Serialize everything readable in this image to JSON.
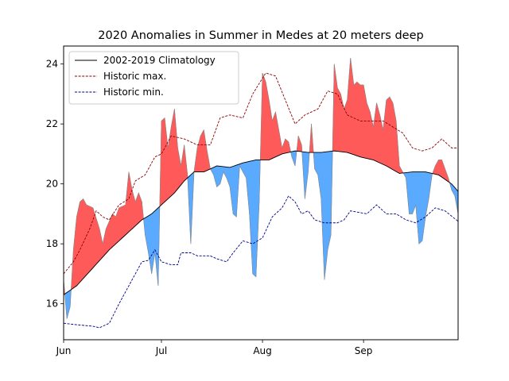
{
  "chart_data": {
    "type": "area",
    "title": "2020 Anomalies in Summer in Medes at 20 meters deep",
    "xlabel": "",
    "ylabel": "",
    "xlim": [
      "2020-06-01",
      "2020-09-30"
    ],
    "ylim": [
      14.8,
      24.6
    ],
    "x_ticks": [
      {
        "date": "2020-06-01",
        "label": "Jun"
      },
      {
        "date": "2020-07-01",
        "label": "Jul"
      },
      {
        "date": "2020-08-01",
        "label": "Aug"
      },
      {
        "date": "2020-09-01",
        "label": "Sep"
      }
    ],
    "y_ticks": [
      16,
      18,
      20,
      22,
      24
    ],
    "grid": false,
    "legend_position": "top-left",
    "colors": {
      "climatology": "#000000",
      "historic_min": "#00008b",
      "historic_max": "#8b0000",
      "warm_fill": "#ff5a5a",
      "cold_fill": "#5aaaff"
    },
    "series": [
      {
        "name": "2002-2019 Climatology",
        "style": "solid",
        "points": [
          [
            "2020-06-01",
            16.3
          ],
          [
            "2020-06-05",
            16.6
          ],
          [
            "2020-06-10",
            17.2
          ],
          [
            "2020-06-15",
            17.8
          ],
          [
            "2020-06-20",
            18.3
          ],
          [
            "2020-06-25",
            18.8
          ],
          [
            "2020-06-28",
            19.0
          ],
          [
            "2020-07-01",
            19.3
          ],
          [
            "2020-07-05",
            19.7
          ],
          [
            "2020-07-08",
            20.1
          ],
          [
            "2020-07-11",
            20.4
          ],
          [
            "2020-07-14",
            20.4
          ],
          [
            "2020-07-18",
            20.6
          ],
          [
            "2020-07-22",
            20.55
          ],
          [
            "2020-07-26",
            20.7
          ],
          [
            "2020-07-30",
            20.8
          ],
          [
            "2020-08-03",
            20.8
          ],
          [
            "2020-08-07",
            21.0
          ],
          [
            "2020-08-11",
            21.1
          ],
          [
            "2020-08-15",
            21.05
          ],
          [
            "2020-08-19",
            21.05
          ],
          [
            "2020-08-23",
            21.1
          ],
          [
            "2020-08-27",
            21.05
          ],
          [
            "2020-08-31",
            20.9
          ],
          [
            "2020-09-04",
            20.8
          ],
          [
            "2020-09-08",
            20.6
          ],
          [
            "2020-09-12",
            20.35
          ],
          [
            "2020-09-16",
            20.4
          ],
          [
            "2020-09-20",
            20.4
          ],
          [
            "2020-09-24",
            20.3
          ],
          [
            "2020-09-28",
            20.0
          ],
          [
            "2020-09-30",
            19.75
          ]
        ]
      },
      {
        "name": "Historic min.",
        "style": "dashed",
        "points": [
          [
            "2020-06-01",
            15.35
          ],
          [
            "2020-06-05",
            15.3
          ],
          [
            "2020-06-10",
            15.25
          ],
          [
            "2020-06-12",
            15.2
          ],
          [
            "2020-06-15",
            15.35
          ],
          [
            "2020-06-18",
            16.0
          ],
          [
            "2020-06-22",
            16.8
          ],
          [
            "2020-06-25",
            17.4
          ],
          [
            "2020-06-27",
            17.45
          ],
          [
            "2020-06-29",
            17.8
          ],
          [
            "2020-07-01",
            17.4
          ],
          [
            "2020-07-04",
            17.3
          ],
          [
            "2020-07-06",
            17.3
          ],
          [
            "2020-07-07",
            17.7
          ],
          [
            "2020-07-10",
            17.7
          ],
          [
            "2020-07-12",
            17.6
          ],
          [
            "2020-07-16",
            17.6
          ],
          [
            "2020-07-18",
            17.5
          ],
          [
            "2020-07-21",
            17.4
          ],
          [
            "2020-07-23",
            17.7
          ],
          [
            "2020-07-26",
            18.1
          ],
          [
            "2020-07-29",
            18.0
          ],
          [
            "2020-08-01",
            18.2
          ],
          [
            "2020-08-04",
            18.9
          ],
          [
            "2020-08-07",
            19.2
          ],
          [
            "2020-08-09",
            19.6
          ],
          [
            "2020-08-11",
            19.4
          ],
          [
            "2020-08-13",
            19.0
          ],
          [
            "2020-08-15",
            19.1
          ],
          [
            "2020-08-17",
            18.8
          ],
          [
            "2020-08-20",
            18.7
          ],
          [
            "2020-08-24",
            18.7
          ],
          [
            "2020-08-26",
            18.8
          ],
          [
            "2020-08-28",
            19.1
          ],
          [
            "2020-09-02",
            19.0
          ],
          [
            "2020-09-05",
            19.3
          ],
          [
            "2020-09-08",
            19.0
          ],
          [
            "2020-09-11",
            19.0
          ],
          [
            "2020-09-14",
            18.8
          ],
          [
            "2020-09-17",
            18.7
          ],
          [
            "2020-09-20",
            18.9
          ],
          [
            "2020-09-23",
            19.2
          ],
          [
            "2020-09-26",
            19.1
          ],
          [
            "2020-09-30",
            18.75
          ]
        ]
      },
      {
        "name": "Historic max.",
        "style": "dashed",
        "points": [
          [
            "2020-06-01",
            17.0
          ],
          [
            "2020-06-04",
            17.4
          ],
          [
            "2020-06-06",
            17.8
          ],
          [
            "2020-06-09",
            18.5
          ],
          [
            "2020-06-11",
            19.1
          ],
          [
            "2020-06-13",
            18.9
          ],
          [
            "2020-06-15",
            18.8
          ],
          [
            "2020-06-18",
            19.3
          ],
          [
            "2020-06-21",
            19.5
          ],
          [
            "2020-06-23",
            20.1
          ],
          [
            "2020-06-26",
            20.3
          ],
          [
            "2020-06-29",
            20.9
          ],
          [
            "2020-07-01",
            21.0
          ],
          [
            "2020-07-04",
            21.6
          ],
          [
            "2020-07-08",
            21.5
          ],
          [
            "2020-07-12",
            21.3
          ],
          [
            "2020-07-16",
            21.3
          ],
          [
            "2020-07-19",
            22.2
          ],
          [
            "2020-07-22",
            22.3
          ],
          [
            "2020-07-26",
            22.2
          ],
          [
            "2020-07-29",
            23.0
          ],
          [
            "2020-08-02",
            23.7
          ],
          [
            "2020-08-05",
            23.6
          ],
          [
            "2020-08-08",
            22.8
          ],
          [
            "2020-08-11",
            22.0
          ],
          [
            "2020-08-14",
            22.3
          ],
          [
            "2020-08-18",
            22.5
          ],
          [
            "2020-08-21",
            23.1
          ],
          [
            "2020-08-24",
            23.0
          ],
          [
            "2020-08-27",
            22.3
          ],
          [
            "2020-08-31",
            22.1
          ],
          [
            "2020-09-04",
            22.1
          ],
          [
            "2020-09-07",
            22.1
          ],
          [
            "2020-09-10",
            21.9
          ],
          [
            "2020-09-13",
            21.7
          ],
          [
            "2020-09-16",
            21.2
          ],
          [
            "2020-09-19",
            21.1
          ],
          [
            "2020-09-22",
            21.2
          ],
          [
            "2020-09-25",
            21.5
          ],
          [
            "2020-09-28",
            21.2
          ],
          [
            "2020-09-30",
            21.2
          ]
        ]
      },
      {
        "name": "",
        "style": "observed",
        "points": [
          [
            "2020-06-01",
            16.8
          ],
          [
            "2020-06-02",
            15.5
          ],
          [
            "2020-06-03",
            15.9
          ],
          [
            "2020-06-04",
            17.8
          ],
          [
            "2020-06-05",
            18.9
          ],
          [
            "2020-06-06",
            19.4
          ],
          [
            "2020-06-07",
            19.5
          ],
          [
            "2020-06-08",
            19.3
          ],
          [
            "2020-06-10",
            19.2
          ],
          [
            "2020-06-12",
            18.5
          ],
          [
            "2020-06-13",
            18.0
          ],
          [
            "2020-06-14",
            18.5
          ],
          [
            "2020-06-16",
            19.0
          ],
          [
            "2020-06-17",
            18.9
          ],
          [
            "2020-06-18",
            19.2
          ],
          [
            "2020-06-20",
            19.3
          ],
          [
            "2020-06-21",
            20.4
          ],
          [
            "2020-06-22",
            19.8
          ],
          [
            "2020-06-23",
            19.4
          ],
          [
            "2020-06-24",
            19.7
          ],
          [
            "2020-06-25",
            19.4
          ],
          [
            "2020-06-26",
            18.3
          ],
          [
            "2020-06-27",
            17.7
          ],
          [
            "2020-06-28",
            17.0
          ],
          [
            "2020-06-29",
            17.7
          ],
          [
            "2020-06-30",
            16.6
          ],
          [
            "2020-07-01",
            22.1
          ],
          [
            "2020-07-02",
            22.2
          ],
          [
            "2020-07-03",
            21.2
          ],
          [
            "2020-07-04",
            21.9
          ],
          [
            "2020-07-05",
            22.5
          ],
          [
            "2020-07-06",
            21.2
          ],
          [
            "2020-07-07",
            20.6
          ],
          [
            "2020-07-08",
            21.3
          ],
          [
            "2020-07-09",
            20.3
          ],
          [
            "2020-07-10",
            18.0
          ],
          [
            "2020-07-11",
            20.4
          ],
          [
            "2020-07-12",
            21.2
          ],
          [
            "2020-07-13",
            21.6
          ],
          [
            "2020-07-14",
            21.8
          ],
          [
            "2020-07-15",
            21.1
          ],
          [
            "2020-07-16",
            20.5
          ],
          [
            "2020-07-17",
            20.3
          ],
          [
            "2020-07-18",
            19.9
          ],
          [
            "2020-07-19",
            20.0
          ],
          [
            "2020-07-20",
            20.4
          ],
          [
            "2020-07-21",
            20.2
          ],
          [
            "2020-07-22",
            19.9
          ],
          [
            "2020-07-23",
            19.0
          ],
          [
            "2020-07-24",
            18.9
          ],
          [
            "2020-07-25",
            20.6
          ],
          [
            "2020-07-26",
            20.4
          ],
          [
            "2020-07-27",
            20.2
          ],
          [
            "2020-07-28",
            19.0
          ],
          [
            "2020-07-29",
            17.0
          ],
          [
            "2020-07-30",
            16.9
          ],
          [
            "2020-07-31",
            19.4
          ],
          [
            "2020-08-01",
            23.7
          ],
          [
            "2020-08-02",
            23.4
          ],
          [
            "2020-08-03",
            22.8
          ],
          [
            "2020-08-04",
            22.1
          ],
          [
            "2020-08-05",
            22.4
          ],
          [
            "2020-08-06",
            21.8
          ],
          [
            "2020-08-07",
            21.2
          ],
          [
            "2020-08-08",
            21.5
          ],
          [
            "2020-08-09",
            21.4
          ],
          [
            "2020-08-10",
            20.9
          ],
          [
            "2020-08-11",
            20.6
          ],
          [
            "2020-08-12",
            21.6
          ],
          [
            "2020-08-13",
            21.3
          ],
          [
            "2020-08-14",
            19.5
          ],
          [
            "2020-08-15",
            20.4
          ],
          [
            "2020-08-16",
            22.0
          ],
          [
            "2020-08-17",
            20.5
          ],
          [
            "2020-08-18",
            20.3
          ],
          [
            "2020-08-19",
            19.5
          ],
          [
            "2020-08-20",
            16.8
          ],
          [
            "2020-08-21",
            17.8
          ],
          [
            "2020-08-22",
            18.3
          ],
          [
            "2020-08-23",
            24.0
          ],
          [
            "2020-08-24",
            23.2
          ],
          [
            "2020-08-25",
            23.0
          ],
          [
            "2020-08-26",
            22.5
          ],
          [
            "2020-08-27",
            22.8
          ],
          [
            "2020-08-28",
            24.2
          ],
          [
            "2020-08-29",
            23.3
          ],
          [
            "2020-08-30",
            23.4
          ],
          [
            "2020-08-31",
            23.3
          ],
          [
            "2020-09-01",
            23.3
          ],
          [
            "2020-09-02",
            22.7
          ],
          [
            "2020-09-03",
            22.4
          ],
          [
            "2020-09-04",
            21.9
          ],
          [
            "2020-09-05",
            22.7
          ],
          [
            "2020-09-06",
            22.3
          ],
          [
            "2020-09-07",
            21.8
          ],
          [
            "2020-09-08",
            22.8
          ],
          [
            "2020-09-09",
            22.9
          ],
          [
            "2020-09-10",
            22.7
          ],
          [
            "2020-09-11",
            22.1
          ],
          [
            "2020-09-12",
            20.6
          ],
          [
            "2020-09-13",
            20.4
          ],
          [
            "2020-09-14",
            20.2
          ],
          [
            "2020-09-15",
            19.0
          ],
          [
            "2020-09-16",
            19.0
          ],
          [
            "2020-09-17",
            19.3
          ],
          [
            "2020-09-18",
            18.0
          ],
          [
            "2020-09-19",
            18.1
          ],
          [
            "2020-09-20",
            18.9
          ],
          [
            "2020-09-21",
            19.5
          ],
          [
            "2020-09-22",
            20.3
          ],
          [
            "2020-09-23",
            20.6
          ],
          [
            "2020-09-24",
            20.8
          ],
          [
            "2020-09-25",
            20.8
          ],
          [
            "2020-09-26",
            20.5
          ],
          [
            "2020-09-27",
            20.2
          ],
          [
            "2020-09-28",
            19.8
          ],
          [
            "2020-09-29",
            19.6
          ],
          [
            "2020-09-30",
            19.0
          ]
        ]
      }
    ]
  }
}
